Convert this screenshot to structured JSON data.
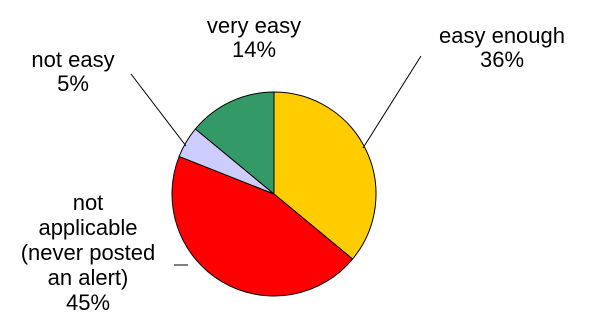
{
  "chart_data": {
    "type": "pie",
    "title": "",
    "slices": [
      {
        "label_lines": [
          "easy enough"
        ],
        "percent_label": "36%",
        "value": 36,
        "color": "#FFCC00"
      },
      {
        "label_lines": [
          "not",
          "applicable",
          "(never posted",
          "an alert)"
        ],
        "percent_label": "45%",
        "value": 45,
        "color": "#FF0000"
      },
      {
        "label_lines": [
          "not easy"
        ],
        "percent_label": "5%",
        "value": 5,
        "color": "#CCCCFF"
      },
      {
        "label_lines": [
          "very easy"
        ],
        "percent_label": "14%",
        "value": 14,
        "color": "#339966"
      }
    ],
    "start_angle_deg": 0,
    "direction": "clockwise",
    "leader_lines": true
  }
}
